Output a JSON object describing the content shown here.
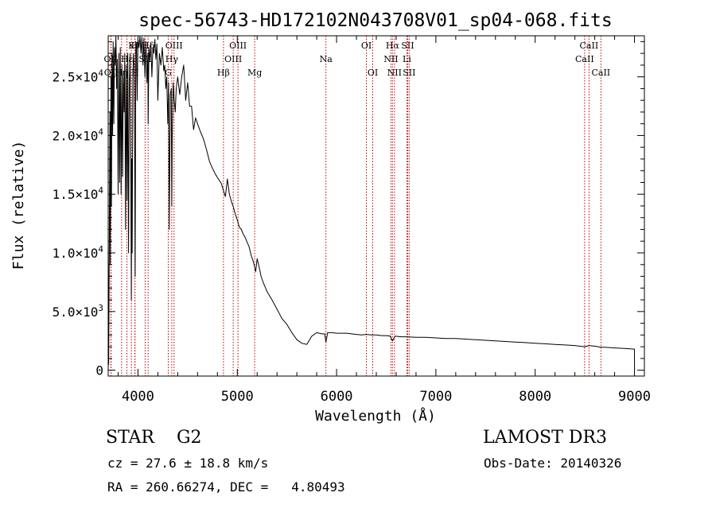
{
  "chart_data": {
    "type": "line",
    "title": "spec-56743-HD172102N043708V01_sp04-068.fits",
    "xlabel": "Wavelength (Å)",
    "ylabel": "Flux (relative)",
    "xlim": [
      3700,
      9100
    ],
    "ylim": [
      -500,
      28500
    ],
    "x_ticks": [
      4000,
      5000,
      6000,
      7000,
      8000,
      9000
    ],
    "x_tick_labels": [
      "4000",
      "5000",
      "6000",
      "7000",
      "8000",
      "9000"
    ],
    "y_ticks": [
      0,
      5000,
      10000,
      15000,
      20000,
      25000
    ],
    "y_tick_labels": [
      {
        "mantissa": "0",
        "exp": ""
      },
      {
        "mantissa": "5.0×10",
        "exp": "3"
      },
      {
        "mantissa": "1.0×10",
        "exp": "4"
      },
      {
        "mantissa": "1.5×10",
        "exp": "4"
      },
      {
        "mantissa": "2.0×10",
        "exp": "4"
      },
      {
        "mantissa": "2.5×10",
        "exp": "4"
      }
    ],
    "series": [
      {
        "name": "flux",
        "x": [
          3700,
          3705,
          3712,
          3718,
          3722,
          3728,
          3733,
          3738,
          3745,
          3750,
          3757,
          3763,
          3770,
          3778,
          3785,
          3792,
          3800,
          3808,
          3815,
          3822,
          3830,
          3838,
          3845,
          3852,
          3860,
          3867,
          3875,
          3882,
          3890,
          3897,
          3905,
          3912,
          3920,
          3927,
          3933,
          3937,
          3941,
          3948,
          3955,
          3962,
          3968,
          3972,
          3978,
          3985,
          3992,
          4000,
          4010,
          4020,
          4030,
          4040,
          4050,
          4060,
          4070,
          4080,
          4090,
          4100,
          4102,
          4110,
          4120,
          4130,
          4140,
          4150,
          4160,
          4170,
          4180,
          4190,
          4200,
          4215,
          4230,
          4245,
          4260,
          4270,
          4280,
          4290,
          4300,
          4308,
          4315,
          4325,
          4335,
          4340,
          4345,
          4355,
          4365,
          4375,
          4385,
          4400,
          4420,
          4440,
          4460,
          4480,
          4500,
          4520,
          4540,
          4560,
          4580,
          4600,
          4630,
          4660,
          4690,
          4720,
          4750,
          4780,
          4810,
          4840,
          4861,
          4880,
          4900,
          4920,
          4940,
          4960,
          4980,
          5000,
          5020,
          5040,
          5060,
          5080,
          5100,
          5120,
          5140,
          5160,
          5175,
          5185,
          5200,
          5220,
          5240,
          5260,
          5280,
          5300,
          5350,
          5400,
          5450,
          5500,
          5550,
          5600,
          5650,
          5700,
          5750,
          5800,
          5850,
          5880,
          5893,
          5910,
          5950,
          6000,
          6050,
          6100,
          6150,
          6200,
          6250,
          6300,
          6350,
          6400,
          6450,
          6500,
          6540,
          6563,
          6590,
          6650,
          6700,
          6800,
          6900,
          7000,
          7100,
          7200,
          7300,
          7400,
          7500,
          7600,
          7700,
          7800,
          7900,
          8000,
          8100,
          8200,
          8300,
          8400,
          8498,
          8542,
          8600,
          8662,
          8700,
          8800,
          8900,
          9000,
          9001
        ],
        "values": [
          11000,
          500,
          12000,
          22000,
          9000,
          25000,
          14000,
          27000,
          20000,
          28000,
          21000,
          27500,
          26000,
          28500,
          24000,
          26500,
          15000,
          27000,
          16000,
          27500,
          15000,
          26000,
          16500,
          25500,
          22000,
          27000,
          12000,
          26000,
          14500,
          27000,
          10000,
          24000,
          27000,
          20000,
          6000,
          18000,
          10000,
          25000,
          27000,
          26000,
          16000,
          8000,
          28000,
          27500,
          23000,
          28200,
          27500,
          28500,
          27000,
          28400,
          26000,
          28300,
          25000,
          28000,
          24500,
          27000,
          21000,
          27500,
          26500,
          27800,
          25000,
          27500,
          27000,
          28200,
          26500,
          27800,
          23000,
          27000,
          26000,
          27500,
          25500,
          26000,
          24000,
          25000,
          21000,
          24500,
          12000,
          23500,
          24000,
          14000,
          20000,
          24500,
          23000,
          22000,
          24000,
          25000,
          23500,
          25000,
          26000,
          23000,
          24500,
          22500,
          22500,
          20500,
          21500,
          21000,
          20300,
          19700,
          18800,
          17800,
          17200,
          16700,
          16300,
          15900,
          15300,
          14800,
          16300,
          15000,
          14400,
          13900,
          13300,
          12800,
          12200,
          12000,
          11600,
          11300,
          10900,
          10500,
          9800,
          9300,
          8800,
          8400,
          9500,
          8800,
          8000,
          7500,
          7100,
          6700,
          6000,
          5200,
          4400,
          3900,
          3200,
          2600,
          2300,
          2200,
          2900,
          3200,
          3100,
          3100,
          2400,
          3200,
          3200,
          3150,
          3150,
          3150,
          3100,
          3050,
          3000,
          3050,
          3000,
          3000,
          2950,
          2950,
          2900,
          2500,
          2900,
          2850,
          2850,
          2800,
          2800,
          2750,
          2700,
          2700,
          2650,
          2600,
          2550,
          2500,
          2450,
          2400,
          2350,
          2300,
          2250,
          2200,
          2150,
          2100,
          2000,
          2100,
          2050,
          1950,
          1950,
          1900,
          1850,
          1800,
          0
        ]
      }
    ],
    "spectral_lines": [
      {
        "label": "Hδ",
        "wavelength": 4102,
        "row": 1
      },
      {
        "label": "K",
        "wavelength": 3934,
        "row": 1
      },
      {
        "label": "H",
        "wavelength": 3969,
        "row": 1
      },
      {
        "label": "OII",
        "wavelength": 3727,
        "row": 2
      },
      {
        "label": "Hε",
        "wavelength": 3889,
        "row": 2
      },
      {
        "label": "SII",
        "wavelength": 4072,
        "row": 2
      },
      {
        "label": "OII",
        "wavelength": 3729,
        "row": 3
      },
      {
        "label": "Hη",
        "wavelength": 3835,
        "row": 3
      },
      {
        "label": "H",
        "wavelength": 3970,
        "row": 3
      },
      {
        "label": "OIII",
        "wavelength": 4363,
        "row": 1
      },
      {
        "label": "Hγ",
        "wavelength": 4340,
        "row": 2
      },
      {
        "label": "G",
        "wavelength": 4305,
        "row": 3
      },
      {
        "label": "OIII",
        "wavelength": 5007,
        "row": 1
      },
      {
        "label": "OIII",
        "wavelength": 4959,
        "row": 2
      },
      {
        "label": "Hβ",
        "wavelength": 4861,
        "row": 3
      },
      {
        "label": "Mg",
        "wavelength": 5175,
        "row": 3
      },
      {
        "label": "Na",
        "wavelength": 5893,
        "row": 2
      },
      {
        "label": "OI",
        "wavelength": 6300,
        "row": 1
      },
      {
        "label": "OI",
        "wavelength": 6364,
        "row": 3
      },
      {
        "label": "Hα",
        "wavelength": 6563,
        "row": 1
      },
      {
        "label": "SII",
        "wavelength": 6716,
        "row": 1
      },
      {
        "label": "NII",
        "wavelength": 6548,
        "row": 2
      },
      {
        "label": "Li",
        "wavelength": 6708,
        "row": 2
      },
      {
        "label": "NII",
        "wavelength": 6583,
        "row": 3
      },
      {
        "label": "SII",
        "wavelength": 6731,
        "row": 3
      },
      {
        "label": "CaII",
        "wavelength": 8542,
        "row": 1
      },
      {
        "label": "CaII",
        "wavelength": 8498,
        "row": 2
      },
      {
        "label": "CaII",
        "wavelength": 8662,
        "row": 3
      }
    ]
  },
  "info": {
    "object_class": "STAR    G2",
    "cz": "cz = 27.6 ± 18.8 km/s",
    "radec": "RA = 260.66274, DEC =   4.80493",
    "survey": "LAMOST DR3",
    "obs_date": "Obs-Date: 20140326"
  }
}
